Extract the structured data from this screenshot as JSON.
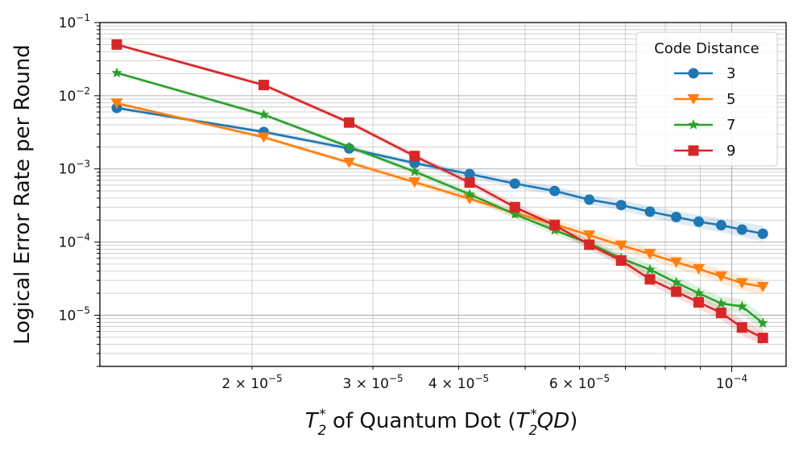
{
  "chart_data": {
    "type": "line",
    "title": "",
    "xlabel": "T₂* of Quantum Dot (T₂*QD)",
    "xlabel_parts": {
      "sym1_base": "T",
      "sym1_sub": "2",
      "sym1_sup": "*",
      "mid_text": " of Quantum Dot  (",
      "sym2_base": "T",
      "sym2_sub": "2",
      "sym2_sup": "*",
      "sym2_suffix": "QD",
      "close": ")"
    },
    "ylabel": "Logical Error Rate per Round",
    "xscale": "log",
    "yscale": "log",
    "xlim": [
      1.2e-05,
      0.00012
    ],
    "ylim": [
      2e-06,
      0.1
    ],
    "grid": true,
    "x_ticks": [
      {
        "value": 2e-05,
        "base": "2 × 10",
        "exp": "−5"
      },
      {
        "value": 3e-05,
        "base": "3 × 10",
        "exp": "−5"
      },
      {
        "value": 4e-05,
        "base": "4 × 10",
        "exp": "−5"
      },
      {
        "value": 6e-05,
        "base": "6 × 10",
        "exp": "−5"
      },
      {
        "value": 0.0001,
        "base": "10",
        "exp": "−4"
      }
    ],
    "y_ticks": [
      {
        "value": 1e-05,
        "base": "10",
        "exp": "−5"
      },
      {
        "value": 0.0001,
        "base": "10",
        "exp": "−4"
      },
      {
        "value": 0.001,
        "base": "10",
        "exp": "−3"
      },
      {
        "value": 0.01,
        "base": "10",
        "exp": "−2"
      },
      {
        "value": 0.1,
        "base": "10",
        "exp": "−1"
      }
    ],
    "legend": {
      "title": "Code Distance",
      "placement": "top-right"
    },
    "x": [
      1.27e-05,
      2.08e-05,
      2.77e-05,
      3.45e-05,
      4.15e-05,
      4.83e-05,
      5.52e-05,
      6.2e-05,
      6.9e-05,
      7.6e-05,
      8.3e-05,
      8.95e-05,
      9.65e-05,
      0.0001035,
      0.000111
    ],
    "series": [
      {
        "name": "3",
        "color": "#1f77b4",
        "marker": "circle",
        "values": [
          0.0068,
          0.0032,
          0.0019,
          0.0012,
          0.00085,
          0.00063,
          0.0005,
          0.00038,
          0.00032,
          0.00026,
          0.00022,
          0.00019,
          0.00017,
          0.000148,
          0.00013
        ]
      },
      {
        "name": "5",
        "color": "#ff7f0e",
        "marker": "triangle-down",
        "values": [
          0.0079,
          0.0027,
          0.00122,
          0.00066,
          0.00039,
          0.00025,
          0.000175,
          0.000124,
          9e-05,
          6.9e-05,
          5.3e-05,
          4.3e-05,
          3.4e-05,
          2.75e-05,
          2.45e-05
        ]
      },
      {
        "name": "7",
        "color": "#2ca02c",
        "marker": "star",
        "values": [
          0.0205,
          0.0055,
          0.002,
          0.00092,
          0.00045,
          0.00024,
          0.000145,
          9.6e-05,
          6e-05,
          4.2e-05,
          2.8e-05,
          2e-05,
          1.45e-05,
          1.32e-05,
          7.8e-06
        ]
      },
      {
        "name": "9",
        "color": "#d62728",
        "marker": "square",
        "values": [
          0.05,
          0.014,
          0.0043,
          0.0015,
          0.00065,
          0.0003,
          0.00017,
          9.2e-05,
          5.6e-05,
          3.1e-05,
          2.1e-05,
          1.5e-05,
          1.08e-05,
          6.8e-06,
          4.9e-06
        ]
      }
    ]
  }
}
